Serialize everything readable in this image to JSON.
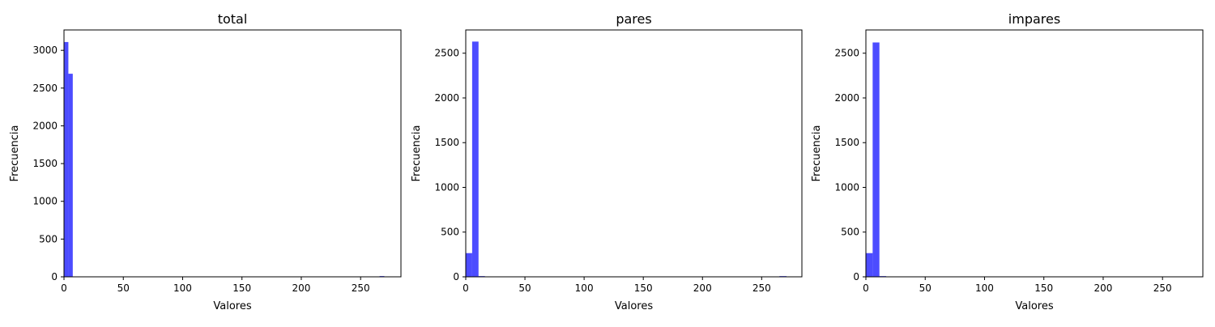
{
  "chart_data": [
    {
      "type": "bar",
      "title": "total",
      "xlabel": "Valores",
      "ylabel": "Frecuencia",
      "xlim": [
        0,
        284
      ],
      "ylim": [
        0,
        3270
      ],
      "xticks": [
        0,
        50,
        100,
        150,
        200,
        250
      ],
      "yticks": [
        0,
        500,
        1000,
        1500,
        2000,
        2500,
        3000
      ],
      "color": "#0000ff",
      "opacity": 0.7,
      "bins": [
        {
          "x0": 0,
          "x1": 3.7,
          "value": 3110
        },
        {
          "x0": 3.7,
          "x1": 7.4,
          "value": 2690
        },
        {
          "x0": 266,
          "x1": 270,
          "value": 10
        }
      ]
    },
    {
      "type": "bar",
      "title": "pares",
      "xlabel": "Valores",
      "ylabel": "Frecuencia",
      "xlim": [
        0,
        284
      ],
      "ylim": [
        0,
        2760
      ],
      "xticks": [
        0,
        50,
        100,
        150,
        200,
        250
      ],
      "yticks": [
        0,
        500,
        1000,
        1500,
        2000,
        2500
      ],
      "color": "#0000ff",
      "opacity": 0.7,
      "bins": [
        {
          "x0": 0,
          "x1": 5.4,
          "value": 265
        },
        {
          "x0": 5.4,
          "x1": 10.8,
          "value": 2630
        },
        {
          "x0": 10.8,
          "x1": 16.2,
          "value": 8
        },
        {
          "x0": 265,
          "x1": 271,
          "value": 8
        }
      ]
    },
    {
      "type": "bar",
      "title": "impares",
      "xlabel": "Valores",
      "ylabel": "Frecuencia",
      "xlim": [
        0,
        284
      ],
      "ylim": [
        0,
        2760
      ],
      "xticks": [
        0,
        50,
        100,
        150,
        200,
        250
      ],
      "yticks": [
        0,
        500,
        1000,
        1500,
        2000,
        2500
      ],
      "color": "#0000ff",
      "opacity": 0.7,
      "bins": [
        {
          "x0": 0,
          "x1": 5.7,
          "value": 265
        },
        {
          "x0": 5.7,
          "x1": 11.4,
          "value": 2620
        },
        {
          "x0": 11.4,
          "x1": 17.1,
          "value": 8
        }
      ]
    }
  ]
}
